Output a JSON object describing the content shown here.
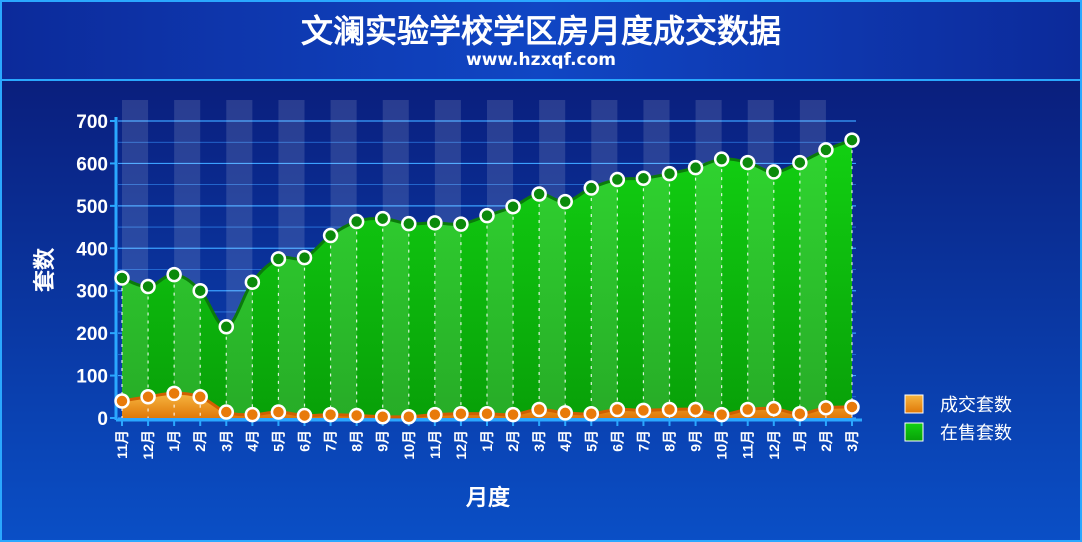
{
  "title": "文澜实验学校学区房月度成交数据",
  "subtitle": "www.hzxqf.com",
  "colors": {
    "sold": "#f08a12",
    "listed": "#10c010",
    "background_top": "#0a1a78",
    "background_bottom": "#0a50c8"
  },
  "chart_data": {
    "type": "area",
    "title": "文澜实验学校学区房月度成交数据",
    "subtitle": "www.hzxqf.com",
    "xlabel": "月度",
    "ylabel": "套数",
    "ylim": [
      0,
      700
    ],
    "yticks": [
      0,
      100,
      200,
      300,
      400,
      500,
      600,
      700
    ],
    "grid": true,
    "legend_position": "right",
    "categories": [
      "11月",
      "12月",
      "1月",
      "2月",
      "3月",
      "4月",
      "5月",
      "6月",
      "7月",
      "8月",
      "9月",
      "10月",
      "11月",
      "12月",
      "1月",
      "2月",
      "3月",
      "4月",
      "5月",
      "6月",
      "7月",
      "8月",
      "9月",
      "10月",
      "11月",
      "12月",
      "1月",
      "2月",
      "3月"
    ],
    "series": [
      {
        "name": "成交套数",
        "color": "#f08a12",
        "values": [
          40,
          50,
          58,
          50,
          14,
          8,
          14,
          6,
          8,
          6,
          3,
          3,
          8,
          10,
          10,
          8,
          20,
          12,
          10,
          20,
          18,
          20,
          20,
          8,
          20,
          22,
          10,
          24,
          26
        ]
      },
      {
        "name": "在售套数",
        "color": "#10c010",
        "values": [
          330,
          310,
          338,
          300,
          215,
          320,
          375,
          378,
          430,
          463,
          470,
          458,
          460,
          457,
          477,
          498,
          528,
          510,
          542,
          562,
          565,
          576,
          590,
          610,
          602,
          580,
          602,
          632,
          655
        ]
      }
    ]
  }
}
